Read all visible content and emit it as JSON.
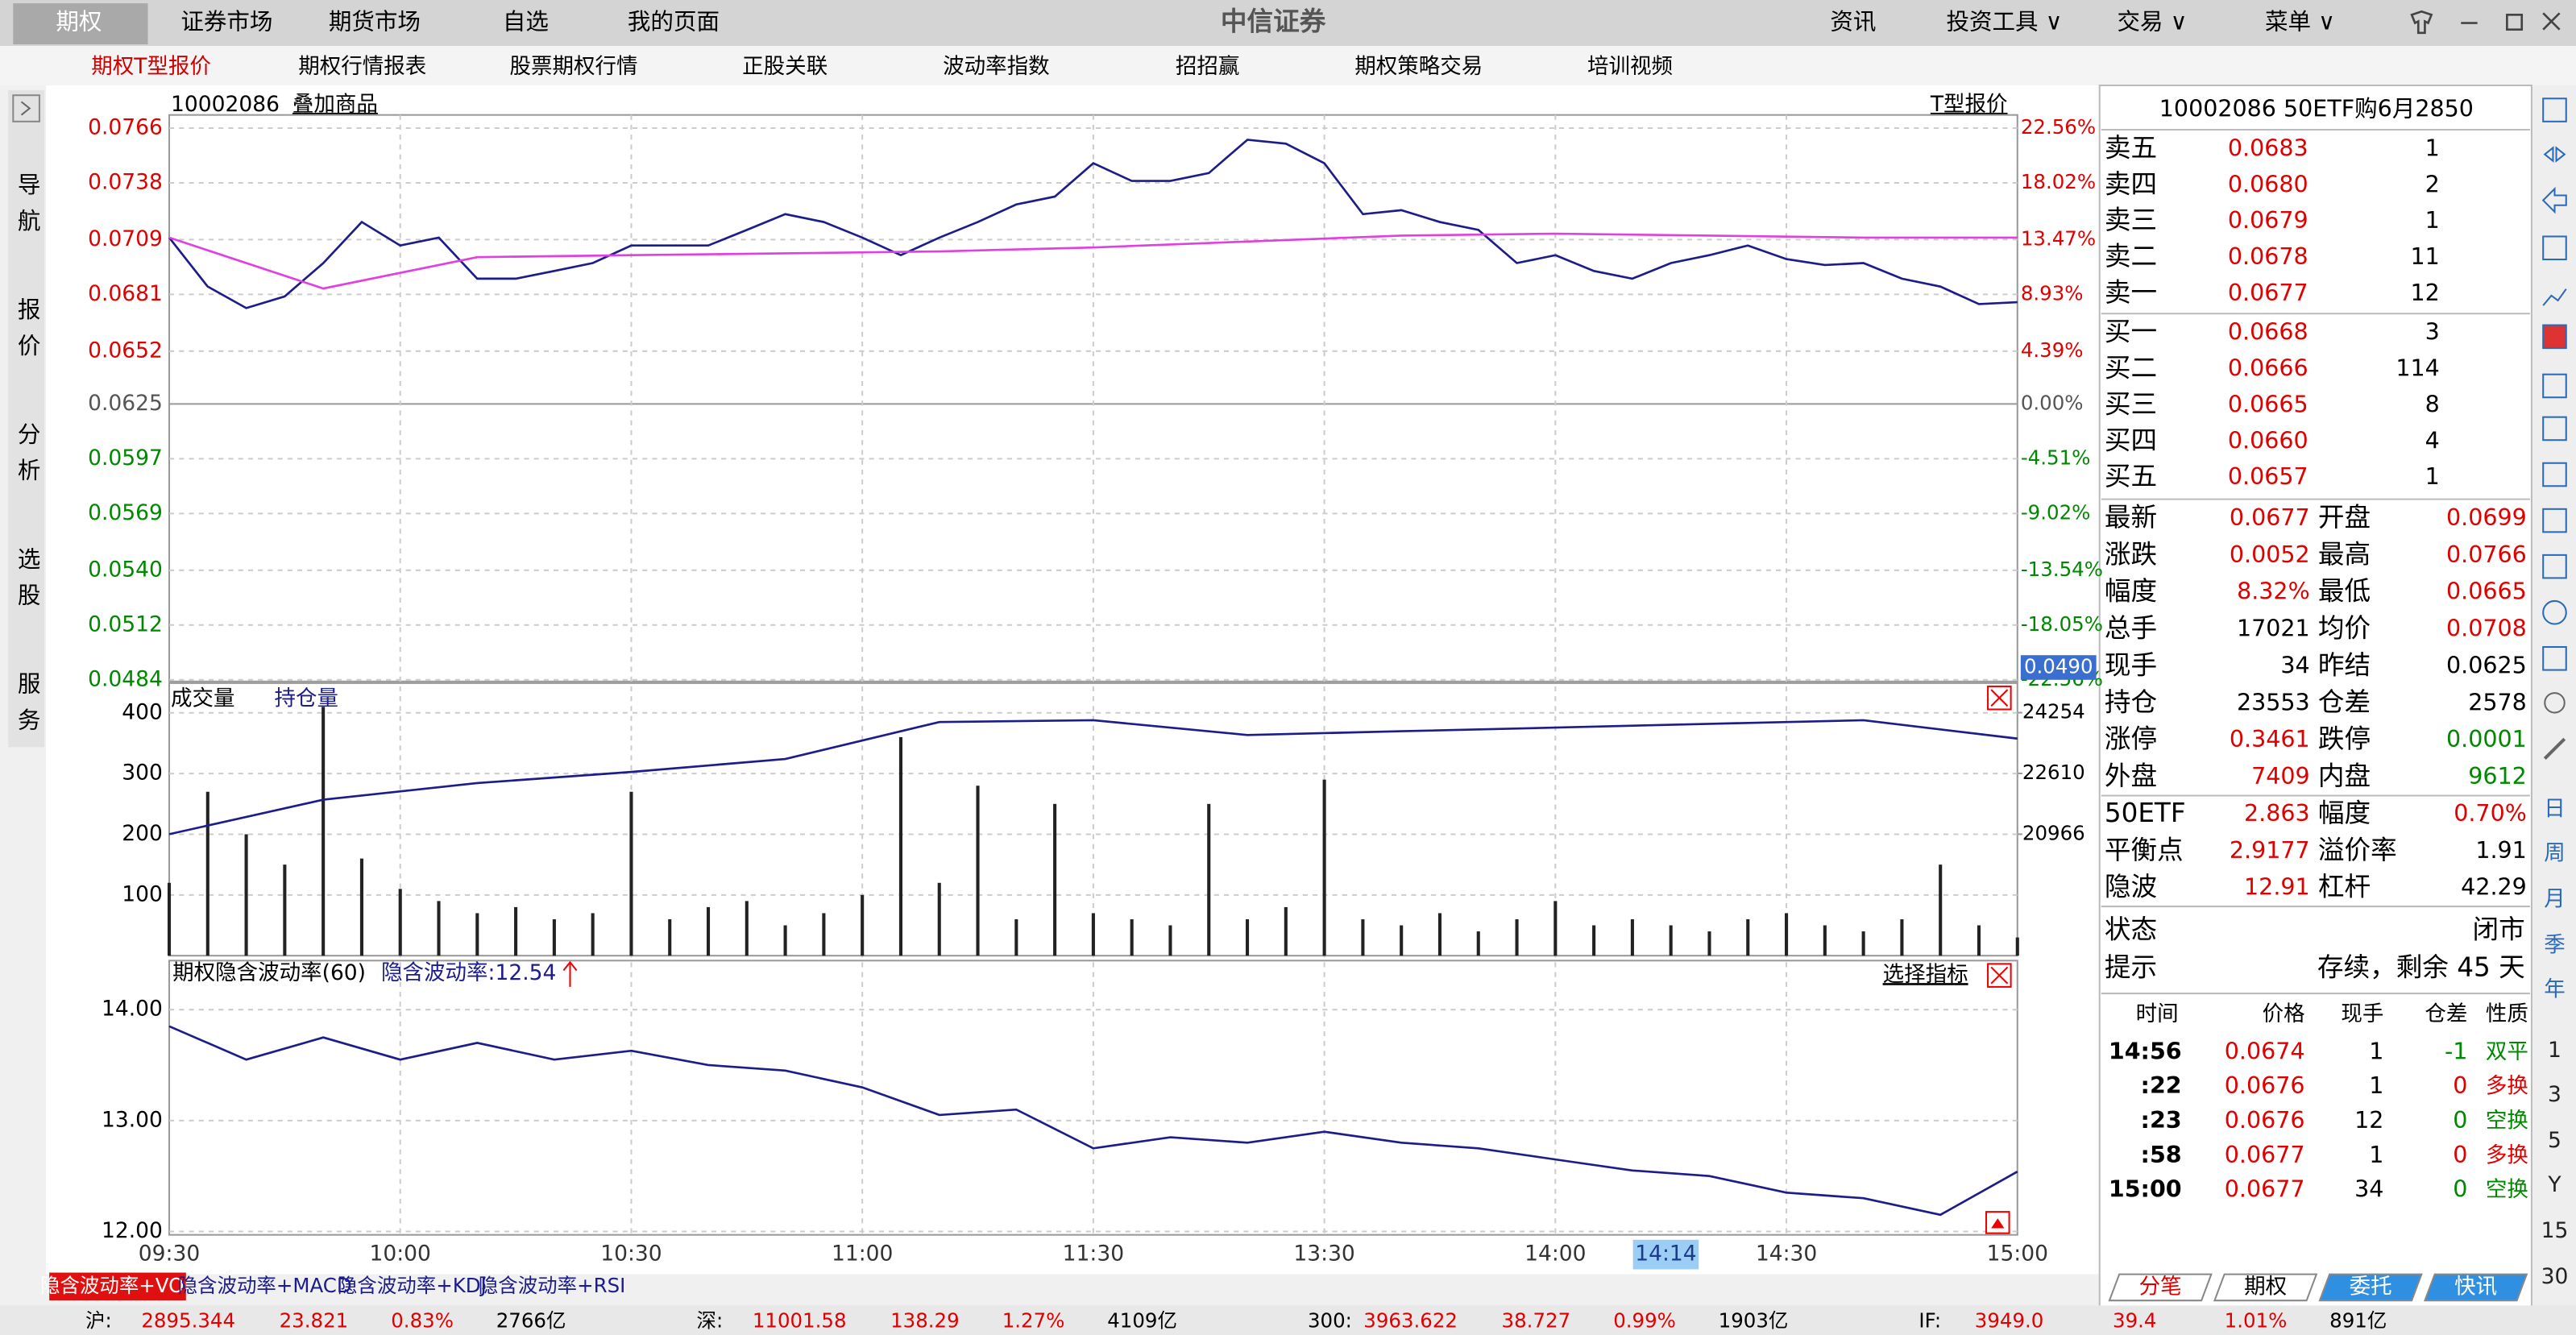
{
  "menu": {
    "items": [
      "期权",
      "证券市场",
      "期货市场",
      "自选",
      "我的页面"
    ],
    "brand": "中信证券",
    "right_items": [
      "资讯",
      "投资工具 ∨",
      "交易 ∨",
      "菜单 ∨"
    ]
  },
  "tabs": [
    "期权T型报价",
    "期权行情报表",
    "股票期权行情",
    "正股关联",
    "波动率指数",
    "招招赢",
    "期权策略交易",
    "培训视频"
  ],
  "nav": [
    "导航",
    "报价",
    "分析",
    "选股",
    "服务"
  ],
  "chart": {
    "code": "10002086",
    "overlay": "叠加商品",
    "t_quote": "T型报价",
    "price": {
      "ylim": [
        0.0484,
        0.0766
      ],
      "yticks": [
        0.0766,
        0.0738,
        0.0709,
        0.0681,
        0.0652,
        0.0625,
        0.0597,
        0.0569,
        {
          "value": 0.054,
          "label": "0.0540"
        },
        0.0512,
        0.0484
      ],
      "right_labels": [
        "22.56%",
        "18.02%",
        "13.47%",
        "8.93%",
        "4.39%",
        "0.00%",
        "-4.51%",
        "-9.02%",
        "-13.54%",
        "-18.05%",
        "-22.56%"
      ],
      "cursor_label": "0.0490",
      "color": "#1c1c8a",
      "avg_color": "#e040e0",
      "values": [
        0.071,
        0.0685,
        0.0674,
        0.068,
        0.0697,
        0.0718,
        0.0706,
        0.071,
        0.0689,
        0.0689,
        0.0693,
        0.0697,
        0.0706,
        0.0706,
        0.0706,
        0.0714,
        0.0722,
        0.0718,
        0.071,
        0.0701,
        0.071,
        0.0718,
        0.0727,
        0.0731,
        0.0748,
        0.0739,
        0.0739,
        0.0743,
        0.076,
        0.0758,
        0.0748,
        0.0722,
        0.0724,
        0.0718,
        0.0714,
        0.0697,
        0.0701,
        0.0693,
        0.0689,
        0.0697,
        0.0701,
        0.0706,
        0.0699,
        0.0696,
        0.0697,
        0.0689,
        0.0685,
        0.0676,
        0.0677
      ],
      "avg_values": [
        0.071,
        0.0684,
        0.07,
        0.0701,
        0.0702,
        0.0703,
        0.0705,
        0.0708,
        0.0711,
        0.0712,
        0.0711,
        0.071,
        0.071
      ]
    },
    "volume": {
      "labels": [
        "成交量",
        "持仓量"
      ],
      "ylim": [
        0,
        449
      ],
      "yticks": [
        400,
        300,
        200,
        100
      ],
      "y2lim": [
        17678,
        25054
      ],
      "y2ticks": [
        24254,
        22610,
        20966
      ],
      "bar_color": "#222222",
      "oi_color": "#1c1c8a",
      "values": [
        120,
        270,
        200,
        150,
        410,
        160,
        110,
        90,
        70,
        80,
        60,
        70,
        270,
        60,
        80,
        90,
        50,
        70,
        100,
        360,
        120,
        280,
        60,
        250,
        70,
        60,
        50,
        250,
        60,
        80,
        290,
        60,
        50,
        70,
        40,
        60,
        90,
        50,
        60,
        50,
        40,
        60,
        70,
        50,
        40,
        60,
        150,
        50,
        30
      ],
      "oi_values": [
        20966,
        21900,
        22350,
        22650,
        23000,
        24000,
        24050,
        23650,
        23750,
        23850,
        23950,
        24050,
        23553
      ]
    },
    "iv": {
      "title": "期权隐含波动率(60)",
      "current": "隐含波动率:12.54",
      "select": "选择指标",
      "ylim": [
        11.97,
        14.22
      ],
      "yticks": [
        {
          "value": 14,
          "label": "14.00"
        },
        {
          "value": 13,
          "label": "13.00"
        },
        {
          "value": 12,
          "label": "12.00"
        }
      ],
      "color": "#1c1c8a",
      "values": [
        13.85,
        13.55,
        13.75,
        13.55,
        13.7,
        13.55,
        13.63,
        13.5,
        13.45,
        13.3,
        13.05,
        13.1,
        12.75,
        12.85,
        12.8,
        12.9,
        12.8,
        12.75,
        12.65,
        12.55,
        12.5,
        12.35,
        12.3,
        12.15,
        12.54
      ]
    },
    "time": {
      "ticks": [
        "09:30",
        "10:00",
        "10:30",
        "11:00",
        "11:30",
        "13:30",
        "14:00",
        "14:30",
        "15:00"
      ],
      "cursor": "14:14"
    }
  },
  "bottom_tabs": [
    "隐含波动率+VOL",
    "隐含波动率+MACD",
    "隐含波动率+KDJ",
    "隐含波动率+RSI"
  ],
  "status": [
    [
      "沪:",
      "2895.344",
      "23.821",
      "0.83%",
      "2766亿"
    ],
    [
      "深:",
      "11001.58",
      "138.29",
      "1.27%",
      "4109亿"
    ],
    [
      "300:",
      "3963.622",
      "38.727",
      "0.99%",
      "1903亿"
    ],
    [
      "IF:",
      "3949.0",
      "39.4",
      "1.01%",
      "891亿"
    ]
  ],
  "quote": {
    "title": "10002086  50ETF购6月2850",
    "sell": [
      {
        "label": "卖五",
        "price": "0.0683",
        "vol": "1"
      },
      {
        "label": "卖四",
        "price": "0.0680",
        "vol": "2"
      },
      {
        "label": "卖三",
        "price": "0.0679",
        "vol": "1"
      },
      {
        "label": "卖二",
        "price": "0.0678",
        "vol": "11"
      },
      {
        "label": "卖一",
        "price": "0.0677",
        "vol": "12"
      }
    ],
    "buy": [
      {
        "label": "买一",
        "price": "0.0668",
        "vol": "3"
      },
      {
        "label": "买二",
        "price": "0.0666",
        "vol": "114"
      },
      {
        "label": "买三",
        "price": "0.0665",
        "vol": "8"
      },
      {
        "label": "买四",
        "price": "0.0660",
        "vol": "4"
      },
      {
        "label": "买五",
        "price": "0.0657",
        "vol": "1"
      }
    ],
    "stats": [
      {
        "l1": "最新",
        "v1": "0.0677",
        "c1": "#e00000",
        "l2": "开盘",
        "v2": "0.0699",
        "c2": "#e00000"
      },
      {
        "l1": "涨跌",
        "v1": "0.0052",
        "c1": "#e00000",
        "l2": "最高",
        "v2": "0.0766",
        "c2": "#e00000"
      },
      {
        "l1": "幅度",
        "v1": "8.32%",
        "c1": "#e00000",
        "l2": "最低",
        "v2": "0.0665",
        "c2": "#e00000"
      },
      {
        "l1": "总手",
        "v1": "17021",
        "c1": "#000000",
        "l2": "均价",
        "v2": "0.0708",
        "c2": "#e00000"
      },
      {
        "l1": "现手",
        "v1": "34",
        "c1": "#000000",
        "l2": "昨结",
        "v2": "0.0625",
        "c2": "#000000"
      },
      {
        "l1": "持仓",
        "v1": "23553",
        "c1": "#000000",
        "l2": "仓差",
        "v2": "2578",
        "c2": "#000000"
      },
      {
        "l1": "涨停",
        "v1": "0.3461",
        "c1": "#e00000",
        "l2": "跌停",
        "v2": "0.0001",
        "c2": "#008800"
      },
      {
        "l1": "外盘",
        "v1": "7409",
        "c1": "#e00000",
        "l2": "内盘",
        "v2": "9612",
        "c2": "#008800"
      },
      {
        "l1": "50ETF",
        "v1": "2.863",
        "c1": "#e00000",
        "l2": "幅度",
        "v2": "0.70%",
        "c2": "#e00000"
      },
      {
        "l1": "平衡点",
        "v1": "2.9177",
        "c1": "#e00000",
        "l2": "溢价率",
        "v2": "1.91",
        "c2": "#000000"
      },
      {
        "l1": "隐波",
        "v1": "12.91",
        "c1": "#e00000",
        "l2": "杠杆",
        "v2": "42.29",
        "c2": "#000000"
      }
    ],
    "state_label": "状态",
    "state": "闭市",
    "hint_label": "提示",
    "hint": "存续，剩余 45 天",
    "trade_header": [
      "时间",
      "价格",
      "现手",
      "仓差",
      "性质"
    ],
    "trades": [
      {
        "time": "14:56",
        "price": "0.0674",
        "vol": "1",
        "oi": "-1",
        "type": "双平",
        "color": "#008800"
      },
      {
        "time": ":22",
        "price": "0.0676",
        "vol": "1",
        "oi": "0",
        "type": "多换",
        "color": "#e00000"
      },
      {
        "time": ":23",
        "price": "0.0676",
        "vol": "12",
        "oi": "0",
        "type": "空换",
        "color": "#008800"
      },
      {
        "time": ":58",
        "price": "0.0677",
        "vol": "1",
        "oi": "0",
        "type": "多换",
        "color": "#e00000"
      },
      {
        "time": "15:00",
        "price": "0.0677",
        "vol": "34",
        "oi": "0",
        "type": "空换",
        "color": "#008800"
      }
    ]
  },
  "side_tabs": [
    "分笔",
    "期权",
    "委托",
    "快讯"
  ],
  "periods": [
    "日",
    "周",
    "月",
    "季",
    "年",
    "1",
    "3",
    "5",
    "Y",
    "15",
    "30"
  ]
}
